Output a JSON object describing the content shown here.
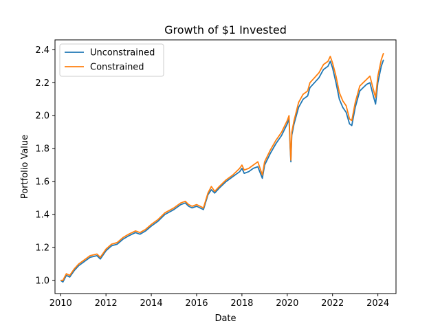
{
  "chart_data": {
    "type": "line",
    "title": "Growth of $1 Invested",
    "xlabel": "Date",
    "ylabel": "Portfolio Value",
    "xlim": [
      2009.75,
      2024.8
    ],
    "ylim": [
      0.92,
      2.46
    ],
    "xticks": [
      2010,
      2012,
      2014,
      2016,
      2018,
      2020,
      2022,
      2024
    ],
    "xtick_labels": [
      "2010",
      "2012",
      "2014",
      "2016",
      "2018",
      "2020",
      "2022",
      "2024"
    ],
    "yticks": [
      1.0,
      1.2,
      1.4,
      1.6,
      1.8,
      2.0,
      2.2,
      2.4
    ],
    "ytick_labels": [
      "1.0",
      "1.2",
      "1.4",
      "1.6",
      "1.8",
      "2.0",
      "2.2",
      "2.4"
    ],
    "grid": false,
    "legend_position": "top-left",
    "series": [
      {
        "name": "Unconstrained",
        "color": "#1f77b4",
        "x": [
          2010.0,
          2010.1,
          2010.25,
          2010.4,
          2010.6,
          2010.8,
          2011.0,
          2011.3,
          2011.6,
          2011.75,
          2011.9,
          2012.0,
          2012.25,
          2012.5,
          2012.75,
          2013.0,
          2013.3,
          2013.5,
          2013.75,
          2014.0,
          2014.3,
          2014.6,
          2015.0,
          2015.3,
          2015.5,
          2015.65,
          2015.8,
          2016.0,
          2016.3,
          2016.5,
          2016.65,
          2016.8,
          2017.0,
          2017.3,
          2017.6,
          2017.9,
          2018.0,
          2018.1,
          2018.3,
          2018.5,
          2018.7,
          2018.9,
          2019.0,
          2019.25,
          2019.5,
          2019.75,
          2020.0,
          2020.08,
          2020.13,
          2020.16,
          2020.2,
          2020.3,
          2020.5,
          2020.7,
          2020.9,
          2021.0,
          2021.2,
          2021.4,
          2021.6,
          2021.8,
          2021.9,
          2022.0,
          2022.15,
          2022.3,
          2022.45,
          2022.6,
          2022.75,
          2022.85,
          2023.0,
          2023.1,
          2023.2,
          2023.35,
          2023.5,
          2023.65,
          2023.8,
          2023.9,
          2024.0,
          2024.15,
          2024.25
        ],
        "y": [
          1.0,
          0.99,
          1.03,
          1.02,
          1.06,
          1.09,
          1.11,
          1.14,
          1.15,
          1.13,
          1.16,
          1.18,
          1.21,
          1.22,
          1.25,
          1.27,
          1.29,
          1.28,
          1.3,
          1.33,
          1.36,
          1.4,
          1.43,
          1.46,
          1.47,
          1.45,
          1.44,
          1.45,
          1.43,
          1.52,
          1.55,
          1.53,
          1.56,
          1.6,
          1.63,
          1.66,
          1.68,
          1.65,
          1.66,
          1.68,
          1.69,
          1.62,
          1.7,
          1.77,
          1.83,
          1.88,
          1.95,
          1.98,
          1.8,
          1.72,
          1.88,
          1.95,
          2.05,
          2.1,
          2.12,
          2.17,
          2.2,
          2.23,
          2.28,
          2.3,
          2.33,
          2.29,
          2.2,
          2.1,
          2.05,
          2.02,
          1.95,
          1.94,
          2.05,
          2.1,
          2.15,
          2.17,
          2.19,
          2.2,
          2.12,
          2.07,
          2.2,
          2.3,
          2.34
        ]
      },
      {
        "name": "Constrained",
        "color": "#ff7f0e",
        "x": [
          2010.0,
          2010.1,
          2010.25,
          2010.4,
          2010.6,
          2010.8,
          2011.0,
          2011.3,
          2011.6,
          2011.75,
          2011.9,
          2012.0,
          2012.25,
          2012.5,
          2012.75,
          2013.0,
          2013.3,
          2013.5,
          2013.75,
          2014.0,
          2014.3,
          2014.6,
          2015.0,
          2015.3,
          2015.5,
          2015.65,
          2015.8,
          2016.0,
          2016.3,
          2016.5,
          2016.65,
          2016.8,
          2017.0,
          2017.3,
          2017.6,
          2017.9,
          2018.0,
          2018.1,
          2018.3,
          2018.5,
          2018.7,
          2018.9,
          2019.0,
          2019.25,
          2019.5,
          2019.75,
          2020.0,
          2020.08,
          2020.13,
          2020.16,
          2020.2,
          2020.3,
          2020.5,
          2020.7,
          2020.9,
          2021.0,
          2021.2,
          2021.4,
          2021.6,
          2021.8,
          2021.9,
          2022.0,
          2022.15,
          2022.3,
          2022.45,
          2022.6,
          2022.75,
          2022.85,
          2023.0,
          2023.1,
          2023.2,
          2023.35,
          2023.5,
          2023.65,
          2023.8,
          2023.9,
          2024.0,
          2024.15,
          2024.25
        ],
        "y": [
          1.0,
          1.0,
          1.04,
          1.03,
          1.07,
          1.1,
          1.12,
          1.15,
          1.16,
          1.14,
          1.17,
          1.19,
          1.22,
          1.23,
          1.26,
          1.28,
          1.3,
          1.29,
          1.31,
          1.34,
          1.37,
          1.41,
          1.44,
          1.47,
          1.48,
          1.46,
          1.45,
          1.46,
          1.44,
          1.53,
          1.57,
          1.54,
          1.57,
          1.61,
          1.64,
          1.68,
          1.7,
          1.67,
          1.68,
          1.7,
          1.72,
          1.64,
          1.72,
          1.79,
          1.85,
          1.9,
          1.97,
          2.0,
          1.82,
          1.73,
          1.9,
          1.97,
          2.08,
          2.13,
          2.15,
          2.2,
          2.23,
          2.26,
          2.31,
          2.33,
          2.36,
          2.32,
          2.24,
          2.14,
          2.09,
          2.06,
          1.98,
          1.97,
          2.08,
          2.13,
          2.18,
          2.2,
          2.22,
          2.24,
          2.16,
          2.11,
          2.24,
          2.34,
          2.38
        ]
      }
    ]
  }
}
